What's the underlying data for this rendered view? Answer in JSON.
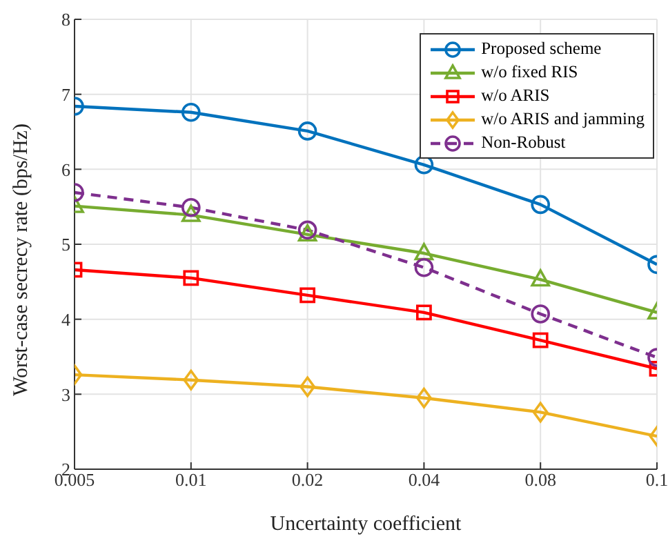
{
  "chart_data": {
    "type": "line",
    "xlabel": "Uncertainty coefficient",
    "ylabel": "Worst-case secrecy rate  (bps/Hz)",
    "categories": [
      "0.005",
      "0.01",
      "0.02",
      "0.04",
      "0.08",
      "0.1"
    ],
    "ylim": [
      2,
      8
    ],
    "yticks": [
      2,
      3,
      4,
      5,
      6,
      7,
      8
    ],
    "grid": true,
    "legend": "top right",
    "series": [
      {
        "name": "Proposed scheme",
        "color": "#0072bd",
        "marker": "circle",
        "line_style": "solid",
        "values": [
          6.84,
          6.76,
          6.51,
          6.06,
          5.53,
          4.73
        ]
      },
      {
        "name": "w/o fixed RIS",
        "color": "#77ac30",
        "marker": "triangle",
        "line_style": "solid",
        "values": [
          5.51,
          5.39,
          5.13,
          4.88,
          4.53,
          4.09
        ]
      },
      {
        "name": "w/o ARIS",
        "color": "#ff0000",
        "marker": "square",
        "line_style": "solid",
        "values": [
          4.66,
          4.55,
          4.32,
          4.09,
          3.72,
          3.34
        ]
      },
      {
        "name": "w/o ARIS and jamming",
        "color": "#edb120",
        "marker": "diamond",
        "line_style": "solid",
        "values": [
          3.26,
          3.19,
          3.1,
          2.95,
          2.76,
          2.44
        ]
      },
      {
        "name": "Non-Robust",
        "color": "#7e2f8e",
        "marker": "circle",
        "line_style": "dashed",
        "values": [
          5.69,
          5.49,
          5.19,
          4.69,
          4.07,
          3.49
        ]
      }
    ]
  }
}
